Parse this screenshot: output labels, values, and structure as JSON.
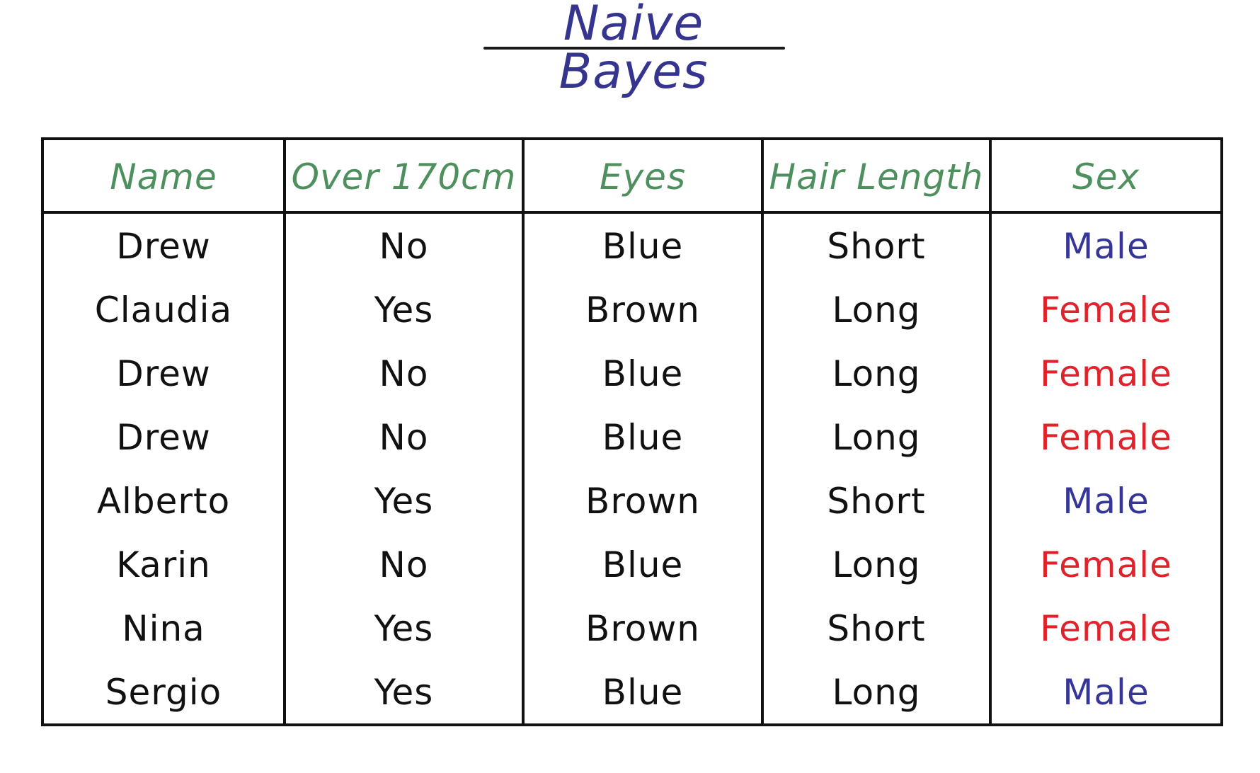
{
  "title": "Naive Bayes",
  "colors": {
    "title": "#35358f",
    "header": "#4e8f5e",
    "text": "#111111",
    "male": "#35359a",
    "female": "#e0222a"
  },
  "table": {
    "headers": [
      "Name",
      "Over 170cm",
      "Eyes",
      "Hair Length",
      "Sex"
    ],
    "rows": [
      [
        "Drew",
        "No",
        "Blue",
        "Short",
        "Male"
      ],
      [
        "Claudia",
        "Yes",
        "Brown",
        "Long",
        "Female"
      ],
      [
        "Drew",
        "No",
        "Blue",
        "Long",
        "Female"
      ],
      [
        "Drew",
        "No",
        "Blue",
        "Long",
        "Female"
      ],
      [
        "Alberto",
        "Yes",
        "Brown",
        "Short",
        "Male"
      ],
      [
        "Karin",
        "No",
        "Blue",
        "Long",
        "Female"
      ],
      [
        "Nina",
        "Yes",
        "Brown",
        "Short",
        "Female"
      ],
      [
        "Sergio",
        "Yes",
        "Blue",
        "Long",
        "Male"
      ]
    ]
  }
}
